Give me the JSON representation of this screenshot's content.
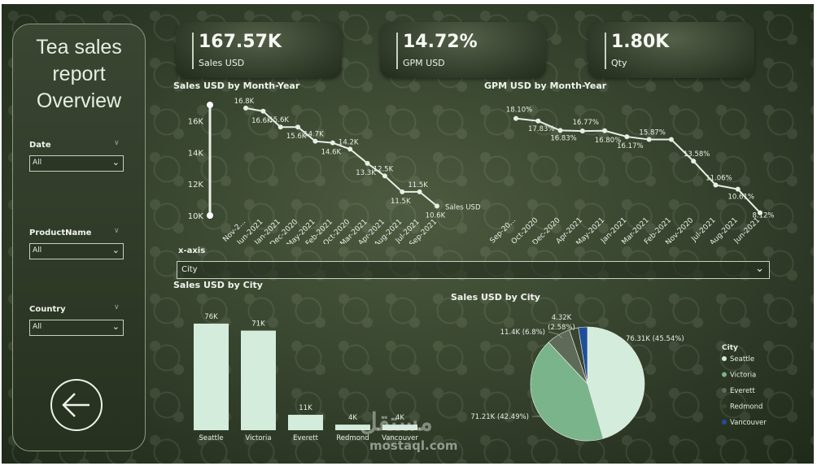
{
  "sidebar": {
    "title_lines": [
      "Tea sales",
      "report",
      "Overview"
    ],
    "slicers": [
      {
        "label": "Date",
        "value": "All"
      },
      {
        "label": "ProductName",
        "value": "All"
      },
      {
        "label": "Country",
        "value": "All"
      }
    ],
    "back_icon": "arrow-left-circle-icon"
  },
  "kpis": [
    {
      "value": "167.57K",
      "label": "Sales USD"
    },
    {
      "value": "14.72%",
      "label": "GPM USD"
    },
    {
      "value": "1.80K",
      "label": "Qty"
    }
  ],
  "axis_control": {
    "label": "x-axis",
    "selected": "City"
  },
  "watermark": {
    "latin": "mostaql.com",
    "arabic": "مستقل"
  },
  "colors": {
    "background": "#3a4630",
    "line": "#e8efe4",
    "seattle": "#d3ecdc",
    "victoria": "#7ab48a",
    "everett": "#5e6b58",
    "redmond": "#39452f",
    "vancouver": "#1f4e9a"
  },
  "chart_data": [
    {
      "type": "line",
      "title": "Sales USD by Month-Year",
      "x": [
        "Nov-2...",
        "Jun-2021",
        "Jan-2021",
        "Dec-2020",
        "May-2021",
        "Feb-2021",
        "Oct-2020",
        "Mar-2021",
        "Apr-2021",
        "Aug-2021",
        "Jul-2021",
        "Sep-2021"
      ],
      "series": [
        {
          "name": "Sales USD",
          "values": [
            16.8,
            16.6,
            15.6,
            15.6,
            14.7,
            14.6,
            14.2,
            13.3,
            12.5,
            11.5,
            11.5,
            10.6
          ]
        }
      ],
      "data_labels": [
        "16.8K",
        "16.6K",
        "15.6K",
        "15.6K",
        "14.7K",
        "14.6K",
        "14.2K",
        "13.3K",
        "12.5K",
        "11.5K",
        "11.5K",
        "10.6K"
      ],
      "y_ticks": [
        "16K",
        "14K",
        "12K",
        "10K"
      ],
      "ylim": [
        10,
        17
      ],
      "y_unit": "K"
    },
    {
      "type": "line",
      "title": "GPM USD by Month-Year",
      "x": [
        "Sep-20...",
        "Oct-2020",
        "Dec-2020",
        "Apr-2021",
        "May-2021",
        "Jan-2021",
        "Mar-2021",
        "Feb-2021",
        "Nov-2020",
        "Jul-2021",
        "Aug-2021",
        "Jun-2021"
      ],
      "series": [
        {
          "name": "GPM USD",
          "values": [
            18.1,
            17.83,
            16.83,
            16.77,
            16.8,
            16.17,
            15.87,
            15.87,
            13.58,
            11.06,
            10.61,
            8.12
          ]
        }
      ],
      "data_labels": [
        "18.10%",
        "17.83%",
        "16.83%",
        "16.77%",
        "16.80%",
        "16.17%",
        "15.87%",
        "",
        "13.58%",
        "11.06%",
        "10.61%",
        "8.12%"
      ],
      "ylim": [
        8,
        18.5
      ]
    },
    {
      "type": "bar",
      "title": "Sales USD by City",
      "categories": [
        "Seattle",
        "Victoria",
        "Everett",
        "Redmond",
        "Vancouver"
      ],
      "values": [
        76,
        71,
        11,
        4,
        4
      ],
      "data_labels": [
        "76K",
        "71K",
        "11K",
        "4K",
        "4K"
      ],
      "ylim": [
        0,
        80
      ]
    },
    {
      "type": "pie",
      "title": "Sales USD by City",
      "legend_title": "City",
      "slices": [
        {
          "label": "Seattle",
          "value": 76.31,
          "percent": 45.54,
          "data_label": "76.31K (45.54%)"
        },
        {
          "label": "Victoria",
          "value": 71.21,
          "percent": 42.49,
          "data_label": "71.21K (42.49%)"
        },
        {
          "label": "Everett",
          "value": 11.4,
          "percent": 6.8,
          "data_label": "11.4K (6.8%)"
        },
        {
          "label": "Redmond",
          "value": 4.32,
          "percent": 2.58,
          "data_label": "4.32K (2.58%)"
        },
        {
          "label": "Vancouver",
          "value": 4.33,
          "percent": 2.59,
          "data_label": ""
        }
      ],
      "legend_position": "right"
    }
  ]
}
